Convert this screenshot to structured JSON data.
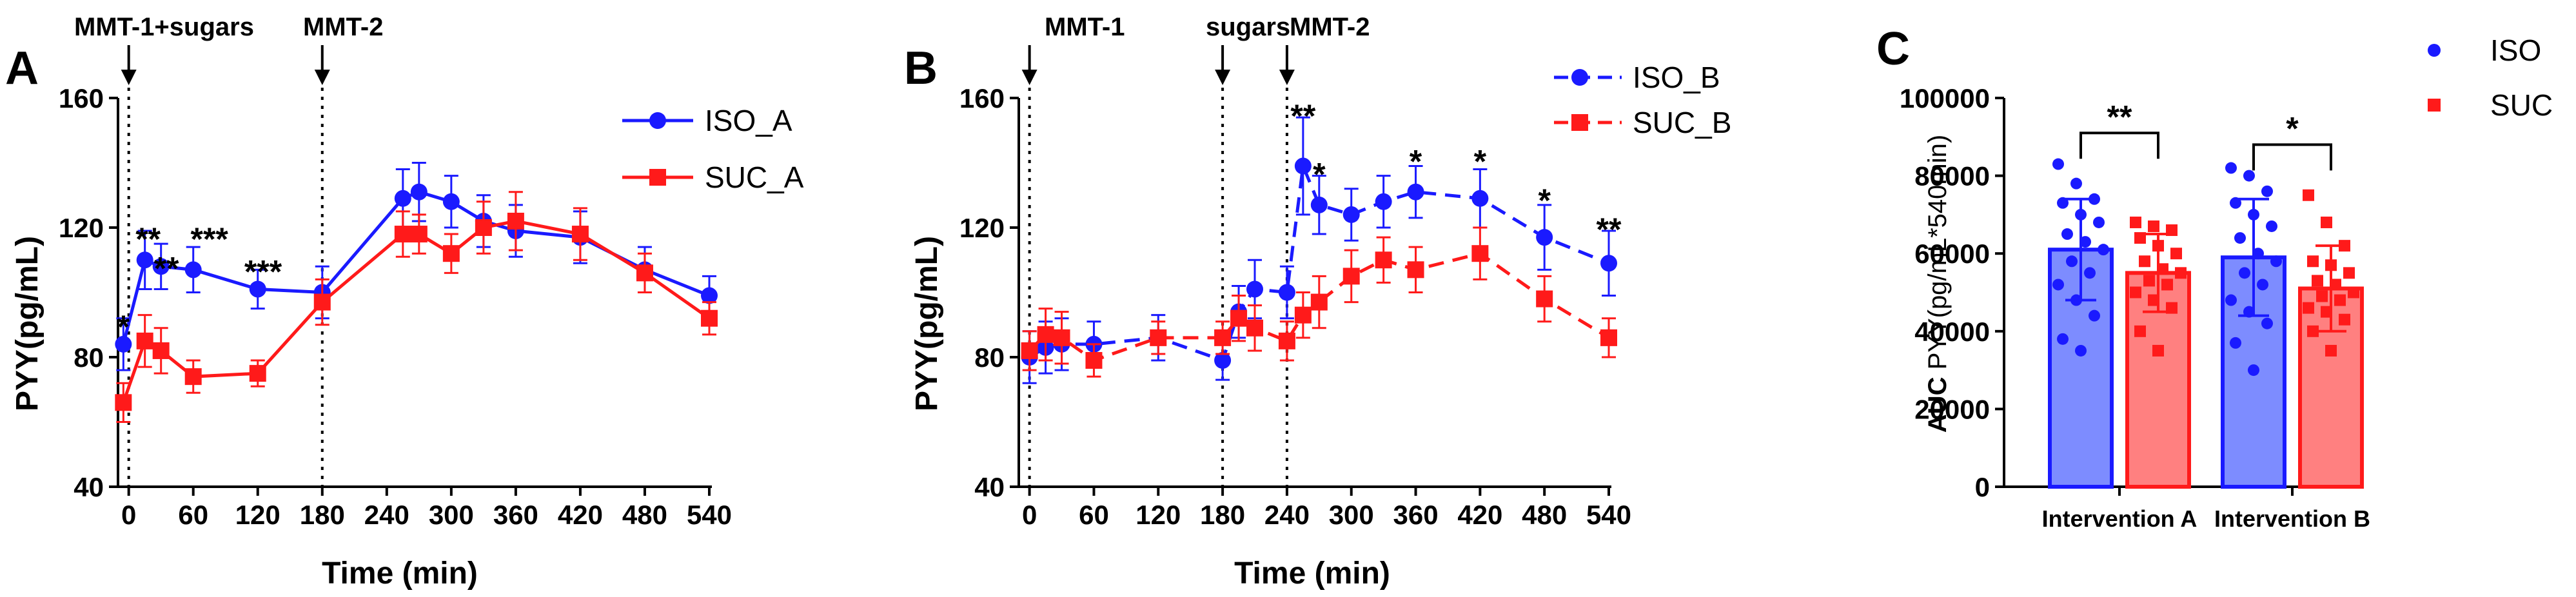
{
  "colors": {
    "iso": "#1a1aff",
    "suc": "#ff1a1a",
    "iso_bar_fill": "#7d8cff",
    "suc_bar_fill": "#ff8080",
    "axis": "#000000"
  },
  "chart_data": [
    {
      "panel": "A",
      "type": "line",
      "xlabel": "Time (min)",
      "ylabel": "PYY(pg/mL)",
      "xlim": [
        -10,
        540
      ],
      "ylim": [
        40,
        160
      ],
      "xticks": [
        0,
        60,
        120,
        180,
        240,
        300,
        360,
        420,
        480,
        540
      ],
      "yticks": [
        40,
        80,
        120,
        160
      ],
      "xtick_labels": [
        "0",
        "60",
        "120",
        "180",
        "240",
        "300",
        "360",
        "420",
        "480",
        "540"
      ],
      "ytick_labels": [
        "40",
        "80",
        "120",
        "160"
      ],
      "events": [
        {
          "x": 0,
          "label": "MMT-1+sugars"
        },
        {
          "x": 180,
          "label": "MMT-2"
        }
      ],
      "series": [
        {
          "name": "ISO_A",
          "style": "solid",
          "marker": "circle",
          "x": [
            -5,
            15,
            30,
            60,
            120,
            180,
            255,
            270,
            300,
            330,
            360,
            420,
            480,
            540
          ],
          "y": [
            84,
            110,
            108,
            107,
            101,
            100,
            129,
            131,
            128,
            122,
            119,
            117,
            107,
            99
          ],
          "err": [
            8,
            9,
            7,
            7,
            6,
            8,
            9,
            9,
            8,
            8,
            8,
            8,
            7,
            6
          ]
        },
        {
          "name": "SUC_A",
          "style": "solid",
          "marker": "square",
          "x": [
            -5,
            15,
            30,
            60,
            120,
            180,
            255,
            270,
            300,
            330,
            360,
            420,
            480,
            540
          ],
          "y": [
            66,
            85,
            82,
            74,
            75,
            97,
            118,
            118,
            112,
            120,
            122,
            118,
            106,
            92
          ],
          "err": [
            6,
            8,
            7,
            5,
            4,
            7,
            7,
            6,
            6,
            8,
            9,
            8,
            6,
            5
          ]
        }
      ],
      "annotations": [
        {
          "text": "*",
          "x": -5,
          "y": 90
        },
        {
          "text": "**",
          "x": 18,
          "y": 117
        },
        {
          "text": "**",
          "x": 35,
          "y": 108
        },
        {
          "text": "***",
          "x": 75,
          "y": 117
        },
        {
          "text": "***",
          "x": 125,
          "y": 107
        }
      ],
      "legend": [
        {
          "name": "ISO_A",
          "color": "#1a1aff",
          "marker": "circle"
        },
        {
          "name": "SUC_A",
          "color": "#ff1a1a",
          "marker": "square"
        }
      ]
    },
    {
      "panel": "B",
      "type": "line",
      "xlabel": "Time (min)",
      "ylabel": "PYY(pg/mL)",
      "xlim": [
        -10,
        540
      ],
      "ylim": [
        40,
        160
      ],
      "xticks": [
        0,
        60,
        120,
        180,
        240,
        300,
        360,
        420,
        480,
        540
      ],
      "yticks": [
        40,
        80,
        120,
        160
      ],
      "xtick_labels": [
        "0",
        "60",
        "120",
        "180",
        "240",
        "300",
        "360",
        "420",
        "480",
        "540"
      ],
      "ytick_labels": [
        "40",
        "80",
        "120",
        "160"
      ],
      "events": [
        {
          "x": 0,
          "label": "MMT-1"
        },
        {
          "x": 180,
          "label": "sugars"
        },
        {
          "x": 240,
          "label": "MMT-2"
        }
      ],
      "series": [
        {
          "name": "ISO_B",
          "style": "dashed",
          "marker": "circle",
          "x": [
            0,
            15,
            30,
            60,
            120,
            180,
            195,
            210,
            240,
            255,
            270,
            300,
            330,
            360,
            420,
            480,
            540
          ],
          "y": [
            80,
            83,
            84,
            84,
            86,
            79,
            94,
            101,
            100,
            139,
            127,
            124,
            128,
            131,
            129,
            117,
            109
          ],
          "err": [
            8,
            8,
            8,
            7,
            7,
            6,
            8,
            9,
            8,
            15,
            9,
            8,
            8,
            8,
            9,
            10,
            10
          ]
        },
        {
          "name": "SUC_B",
          "style": "dashed",
          "marker": "square",
          "x": [
            0,
            15,
            30,
            60,
            120,
            180,
            195,
            210,
            240,
            255,
            270,
            300,
            330,
            360,
            420,
            480,
            540
          ],
          "y": [
            82,
            87,
            86,
            79,
            86,
            86,
            92,
            89,
            85,
            93,
            97,
            105,
            110,
            107,
            112,
            98,
            86
          ],
          "err": [
            6,
            8,
            8,
            5,
            5,
            5,
            7,
            7,
            6,
            7,
            8,
            8,
            7,
            7,
            8,
            7,
            6
          ]
        }
      ],
      "annotations": [
        {
          "text": "**",
          "x": 255,
          "y": 155
        },
        {
          "text": "*",
          "x": 270,
          "y": 137
        },
        {
          "text": "*",
          "x": 360,
          "y": 141
        },
        {
          "text": "*",
          "x": 420,
          "y": 141
        },
        {
          "text": "*",
          "x": 480,
          "y": 129
        },
        {
          "text": "**",
          "x": 540,
          "y": 120
        }
      ],
      "legend": [
        {
          "name": "ISO_B",
          "color": "#1a1aff",
          "marker": "circle"
        },
        {
          "name": "SUC_B",
          "color": "#ff1a1a",
          "marker": "square"
        }
      ]
    },
    {
      "panel": "C",
      "type": "bar",
      "ylabel_bold": "AUC",
      "ylabel_rest": " PYY(pg/mL*540min)",
      "ylim": [
        0,
        100000
      ],
      "yticks": [
        0,
        20000,
        40000,
        60000,
        80000,
        100000
      ],
      "ytick_labels": [
        "0",
        "20000",
        "40000",
        "60000",
        "80000",
        "100000"
      ],
      "categories": [
        "Intervention A",
        "Intervention B"
      ],
      "series": [
        {
          "name": "ISO",
          "color": "#1a1aff",
          "marker": "circle",
          "values": [
            61000,
            59000
          ],
          "sd": [
            13000,
            15000
          ]
        },
        {
          "name": "SUC",
          "color": "#ff1a1a",
          "marker": "square",
          "values": [
            55000,
            51000
          ],
          "sd": [
            10000,
            11000
          ]
        }
      ],
      "points": {
        "ISO": [
          [
            83000,
            78000,
            74000,
            73000,
            70000,
            68000,
            65000,
            63000,
            61000,
            58000,
            55000,
            52000,
            48000,
            44000,
            38000,
            35000
          ],
          [
            82000,
            80000,
            76000,
            73000,
            70000,
            67000,
            64000,
            60000,
            58000,
            55000,
            52000,
            48000,
            45000,
            42000,
            37000,
            30000
          ]
        ],
        "SUC": [
          [
            68000,
            67000,
            66000,
            64000,
            62000,
            60000,
            58000,
            56000,
            55000,
            53000,
            52000,
            50000,
            48000,
            46000,
            40000,
            35000
          ],
          [
            75000,
            68000,
            62000,
            58000,
            57000,
            55000,
            53000,
            52000,
            50000,
            49000,
            48000,
            46000,
            45000,
            43000,
            40000,
            35000
          ]
        ]
      },
      "significance": [
        "**",
        "*"
      ],
      "legend": [
        {
          "name": "ISO",
          "color": "#1a1aff",
          "marker": "circle"
        },
        {
          "name": "SUC",
          "color": "#ff1a1a",
          "marker": "square"
        }
      ]
    }
  ]
}
